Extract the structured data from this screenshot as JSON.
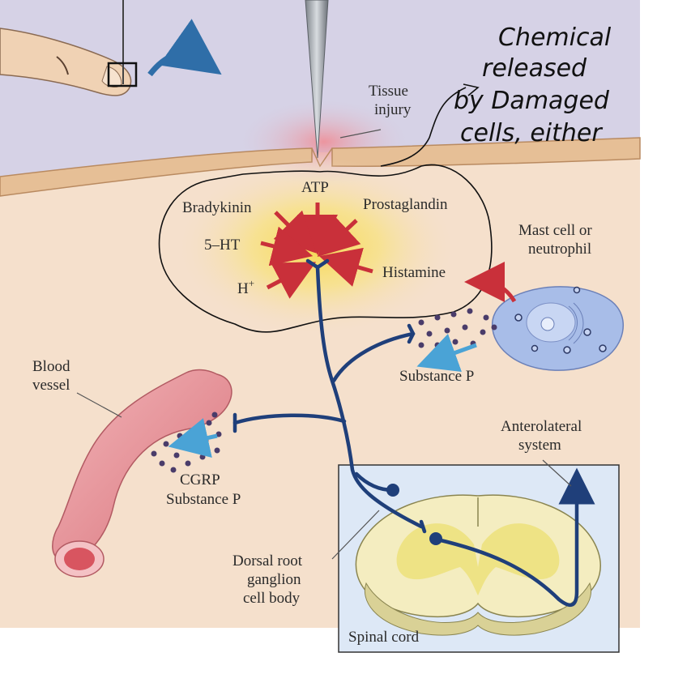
{
  "labels": {
    "tissue_injury": [
      "Tissue",
      "injury"
    ],
    "atp": "ATP",
    "bradykinin": "Bradykinin",
    "prostaglandin": "Prostaglandin",
    "five_ht": "5–HT",
    "histamine": "Histamine",
    "h_plus": "H",
    "h_plus_sup": "+",
    "mast_cell": [
      "Mast cell or",
      "neutrophil"
    ],
    "substance_p": "Substance P",
    "blood_vessel": [
      "Blood",
      "vessel"
    ],
    "cgrp": [
      "CGRP",
      "Substance P"
    ],
    "anterolateral": [
      "Anterolateral",
      "system"
    ],
    "dorsal_root": [
      "Dorsal root",
      "ganglion",
      "cell body"
    ],
    "spinal_cord": "Spinal cord"
  },
  "handwriting": [
    "Chemical",
    "released",
    "by Damaged",
    "cells, either"
  ],
  "colors": {
    "sky": "#d6d2e6",
    "tissue": "#f5e0cc",
    "skin_band": "#e6bf96",
    "nerve": "#1f3f7a",
    "arrow_red": "#c9303a",
    "arrow_blue": "#4aa3d6",
    "vessel": "#e7959b",
    "inset_bg": "#dde8f6"
  },
  "icons": [
    "finger-icon",
    "pin-icon",
    "curved-arrow-icon",
    "needle-icon"
  ]
}
